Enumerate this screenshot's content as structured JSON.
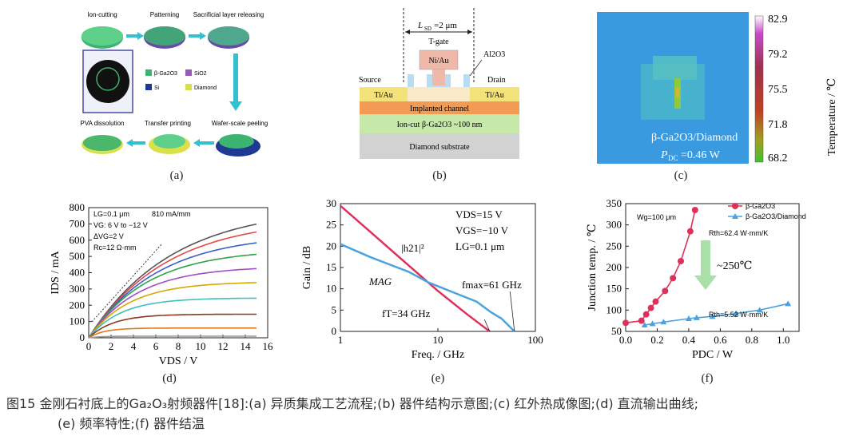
{
  "panel_labels": {
    "a": "(a)",
    "b": "(b)",
    "c": "(c)",
    "d": "(d)",
    "e": "(e)",
    "f": "(f)"
  },
  "a": {
    "steps": [
      "Ion-cutting",
      "Patterning",
      "Sacrificial layer releasing",
      "Wafer-scale peeling",
      "Transfer printing",
      "PVA dissolution"
    ],
    "legend": [
      "β-Ga2O3",
      "SiO2",
      "Si",
      "Diamond"
    ],
    "colors": {
      "ga2o3": "#3cb371",
      "sio2": "#9b59b6",
      "si": "#1f3a93",
      "diamond": "#d8e04a",
      "arrow": "#33c0d0"
    }
  },
  "b": {
    "lsd_label": "L",
    "lsd_sub": "SD",
    "lsd_val": "=2 μm",
    "tgate": "T-gate",
    "gate_metal": "Ni/Au",
    "al2o3": "Al2O3",
    "source": "Source",
    "drain": "Drain",
    "src_metal": "Ti/Au",
    "drn_metal": "Ti/Au",
    "channel": "Implanted channel",
    "ioncut": "Ion-cut β-Ga2O3 ~100 nm",
    "substrate": "Diamond substrate"
  },
  "c": {
    "scale_ticks": [
      "82.9",
      "79.2",
      "75.5",
      "71.8",
      "68.2"
    ],
    "scale_label": "Temperature / ℃",
    "material": "β-Ga2O3/Diamond",
    "power_label": "P",
    "power_sub": "DC",
    "power_val": "=0.46 W"
  },
  "d": {
    "ann1": "LG=0.1 μm",
    "ann1b": "810 mA/mm",
    "ann2": "VG: 6 V to −12 V",
    "ann3": "ΔVG=2 V",
    "ann4": "Rc=12 Ω·mm"
  },
  "e": {
    "ann": [
      "VDS=15 V",
      "VGS=−10 V",
      "LG=0.1 μm"
    ],
    "h21": "|h21|²",
    "mag": "MAG",
    "fmax": "fmax=61 GHz",
    "ft": "fT=34 GHz"
  },
  "f": {
    "legend": [
      "β-Ga2O3",
      "β-Ga2O3/Diamond"
    ],
    "wg": "Wg=100 μm",
    "rth1": "Rth=62.4 W·mm/K",
    "rth2": "Rth=5.52 W·mm/K",
    "delta": "~250℃"
  },
  "chart_data": [
    {
      "type": "line",
      "id": "d",
      "xlabel": "VDS / V",
      "ylabel": "IDS / mA",
      "xlim": [
        0,
        16
      ],
      "ylim": [
        0,
        800
      ],
      "x_ticks": [
        0,
        2,
        4,
        6,
        8,
        10,
        12,
        14,
        16
      ],
      "y_ticks": [
        0,
        100,
        200,
        300,
        400,
        500,
        600,
        700,
        800
      ],
      "series": [
        {
          "color": "#555555",
          "sat": 805,
          "k": 0.15
        },
        {
          "color": "#e04a4a",
          "sat": 735,
          "k": 0.16
        },
        {
          "color": "#3a5fc8",
          "sat": 640,
          "k": 0.18
        },
        {
          "color": "#2ea34a",
          "sat": 545,
          "k": 0.21
        },
        {
          "color": "#a64bc8",
          "sat": 440,
          "k": 0.25
        },
        {
          "color": "#d6a800",
          "sat": 345,
          "k": 0.3
        },
        {
          "color": "#3cc0c0",
          "sat": 245,
          "k": 0.38
        },
        {
          "color": "#8b3a1e",
          "sat": 145,
          "k": 0.5
        },
        {
          "color": "#e07a1e",
          "sat": 60,
          "k": 0.8
        },
        {
          "color": "#999999",
          "sat": 10,
          "k": 1.0
        }
      ]
    },
    {
      "type": "line",
      "id": "e",
      "xlabel": "Freq. / GHz",
      "ylabel": "Gain / dB",
      "xscale": "log",
      "xlim": [
        1,
        100
      ],
      "ylim": [
        0,
        30
      ],
      "x_ticks": [
        "1",
        "10",
        "100"
      ],
      "y_ticks": [
        0,
        5,
        10,
        15,
        20,
        25,
        30
      ],
      "series": [
        {
          "name": "|h21|²",
          "color": "#e0305a",
          "x": [
            1,
            2,
            5,
            10,
            20,
            34
          ],
          "y": [
            29.5,
            23.5,
            15.5,
            9.5,
            4,
            0
          ]
        },
        {
          "name": "MAG",
          "color": "#4aa3df",
          "x": [
            1,
            2,
            5,
            8,
            15,
            25,
            35,
            45,
            61
          ],
          "y": [
            20.5,
            17.5,
            14,
            11.5,
            9,
            7,
            4.5,
            3,
            0
          ]
        }
      ]
    },
    {
      "type": "scatter",
      "id": "f",
      "xlabel": "PDC / W",
      "ylabel": "Junction temp. / ℃",
      "xlim": [
        0,
        1.1
      ],
      "ylim": [
        50,
        350
      ],
      "x_ticks": [
        "0.0",
        "0.2",
        "0.4",
        "0.6",
        "0.8",
        "1.0"
      ],
      "y_ticks": [
        50,
        100,
        150,
        200,
        250,
        300,
        350
      ],
      "series": [
        {
          "name": "β-Ga2O3",
          "color": "#e0305a",
          "x": [
            0.0,
            0.1,
            0.13,
            0.16,
            0.19,
            0.25,
            0.3,
            0.35,
            0.41,
            0.44
          ],
          "y": [
            70,
            75,
            90,
            105,
            120,
            145,
            175,
            215,
            285,
            335
          ]
        },
        {
          "name": "β-Ga2O3/Diamond",
          "color": "#4aa3df",
          "x": [
            0.12,
            0.17,
            0.24,
            0.4,
            0.45,
            0.55,
            0.7,
            0.85,
            1.03
          ],
          "y": [
            65,
            68,
            72,
            80,
            82,
            85,
            92,
            100,
            115
          ]
        }
      ]
    }
  ],
  "caption": {
    "line1": "图15  金刚石衬底上的Ga₂O₃射频器件[18]:(a) 异质集成工艺流程;(b) 器件结构示意图;(c) 红外热成像图;(d) 直流输出曲线;",
    "line2": "(e) 频率特性;(f) 器件结温"
  }
}
